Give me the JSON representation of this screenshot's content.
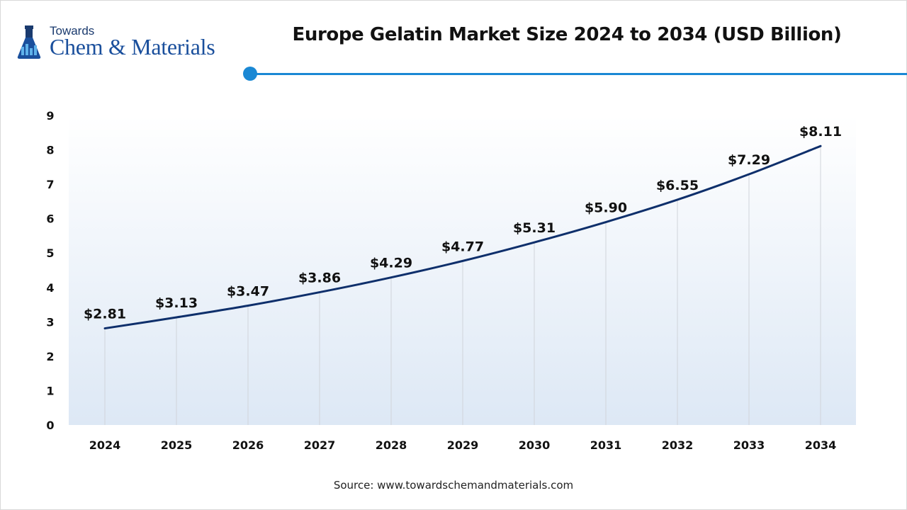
{
  "header": {
    "logo_top": "Towards",
    "logo_main": "Chem & Materials",
    "title": "Europe Gelatin Market Size 2024 to 2034 (USD Billion)"
  },
  "footer": {
    "source": "Source: www.towardschemandmaterials.com"
  },
  "colors": {
    "line": "#0e2f6b",
    "accent": "#1a88d4",
    "grid": "#d0d4da"
  },
  "chart_data": {
    "type": "line",
    "x": [
      "2024",
      "2025",
      "2026",
      "2027",
      "2028",
      "2029",
      "2030",
      "2031",
      "2032",
      "2033",
      "2034"
    ],
    "series": [
      {
        "values": [
          2.81,
          3.13,
          3.47,
          3.86,
          4.29,
          4.77,
          5.31,
          5.9,
          6.55,
          7.29,
          8.11
        ],
        "labels": [
          "$2.81",
          "$3.13",
          "$3.47",
          "$3.86",
          "$4.29",
          "$4.77",
          "$5.31",
          "$5.90",
          "$6.55",
          "$7.29",
          "$8.11"
        ]
      }
    ],
    "yticks": [
      "0",
      "1",
      "2",
      "3",
      "4",
      "5",
      "6",
      "7",
      "8",
      "9"
    ],
    "ylim": [
      0,
      9
    ],
    "title": "Europe Gelatin Market Size 2024 to 2034 (USD Billion)",
    "xlabel": "",
    "ylabel": "",
    "grid": "vertical drop lines",
    "legend": "none"
  }
}
